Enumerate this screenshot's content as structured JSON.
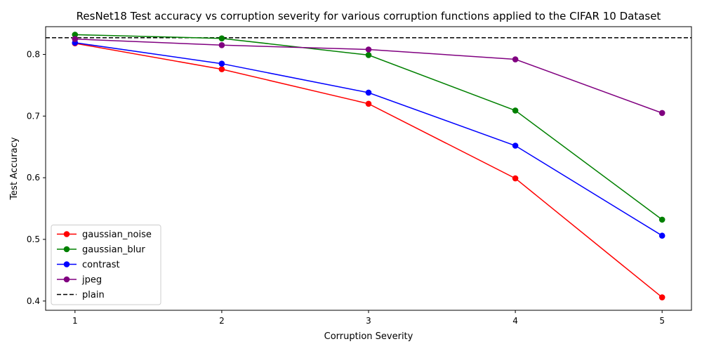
{
  "chart_data": {
    "type": "line",
    "title": "ResNet18 Test accuracy vs corruption severity for various corruption functions applied to the CIFAR 10 Dataset",
    "xlabel": "Corruption Severity",
    "ylabel": "Test Accuracy",
    "x": [
      1,
      2,
      3,
      4,
      5
    ],
    "xlim": [
      0.8,
      5.2
    ],
    "ylim": [
      0.385,
      0.845
    ],
    "xticks": [
      "1",
      "2",
      "3",
      "4",
      "5"
    ],
    "yticks": [
      "0.4",
      "0.5",
      "0.6",
      "0.7",
      "0.8"
    ],
    "grid": false,
    "legend_position": "lower-left",
    "series": [
      {
        "name": "gaussian_noise",
        "color": "#ff0000",
        "values": [
          0.818,
          0.776,
          0.72,
          0.599,
          0.406
        ]
      },
      {
        "name": "gaussian_blur",
        "color": "#008000",
        "values": [
          0.832,
          0.826,
          0.799,
          0.709,
          0.532
        ]
      },
      {
        "name": "contrast",
        "color": "#0000ff",
        "values": [
          0.819,
          0.785,
          0.738,
          0.652,
          0.506
        ]
      },
      {
        "name": "jpeg",
        "color": "#800080",
        "values": [
          0.825,
          0.815,
          0.808,
          0.792,
          0.705
        ]
      }
    ],
    "reference_line": {
      "name": "plain",
      "color": "#000000",
      "style": "dashed",
      "value": 0.827
    }
  }
}
